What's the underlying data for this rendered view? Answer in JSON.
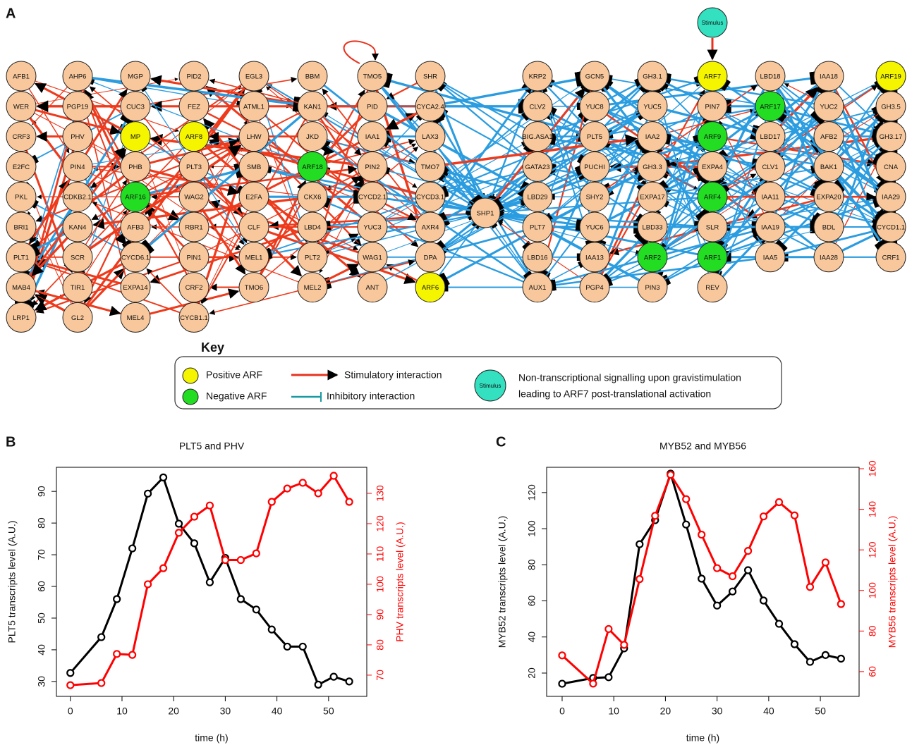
{
  "panel_labels": [
    "A",
    "B",
    "C"
  ],
  "network": {
    "node_color": "#f8c89c",
    "stimulus": {
      "label": "Stimulus",
      "color": "#33e0c0"
    },
    "columns": [
      [
        {
          "label": "AFB1"
        },
        {
          "label": "WER"
        },
        {
          "label": "CRF3"
        },
        {
          "label": "E2FC"
        },
        {
          "label": "PKL"
        },
        {
          "label": "BRI1"
        },
        {
          "label": "PLT1"
        },
        {
          "label": "MAB4"
        },
        {
          "label": "LRP1"
        }
      ],
      [
        {
          "label": "AHP6"
        },
        {
          "label": "PGP19"
        },
        {
          "label": "PHV"
        },
        {
          "label": "PIN4"
        },
        {
          "label": "CDKB2.1"
        },
        {
          "label": "KAN4"
        },
        {
          "label": "SCR"
        },
        {
          "label": "TIR1"
        },
        {
          "label": "GL2"
        }
      ],
      [
        {
          "label": "MGP"
        },
        {
          "label": "CUC3"
        },
        {
          "label": "MP",
          "color": "#f5f500"
        },
        {
          "label": "PHB"
        },
        {
          "label": "ARF16",
          "color": "#22dd22"
        },
        {
          "label": "AFB3"
        },
        {
          "label": "CYCD6.1"
        },
        {
          "label": "EXPA14"
        },
        {
          "label": "MEL4"
        }
      ],
      [
        {
          "label": "PID2"
        },
        {
          "label": "FEZ"
        },
        {
          "label": "ARF8",
          "color": "#f5f500"
        },
        {
          "label": "PLT3"
        },
        {
          "label": "WAG2"
        },
        {
          "label": "RBR1"
        },
        {
          "label": "PIN1"
        },
        {
          "label": "CRF2"
        },
        {
          "label": "CYCB1.1"
        }
      ],
      [
        {
          "label": "EGL3"
        },
        {
          "label": "ATML1"
        },
        {
          "label": "LHW"
        },
        {
          "label": "SMB"
        },
        {
          "label": "E2FA"
        },
        {
          "label": "CLF"
        },
        {
          "label": "MEL1"
        },
        {
          "label": "TMO6"
        }
      ],
      [
        {
          "label": "BBM"
        },
        {
          "label": "KAN1"
        },
        {
          "label": "JKD"
        },
        {
          "label": "ARF18",
          "color": "#22dd22"
        },
        {
          "label": "CKX6"
        },
        {
          "label": "LBD4"
        },
        {
          "label": "PLT2"
        },
        {
          "label": "MEL2"
        }
      ],
      [
        {
          "label": "TMO5"
        },
        {
          "label": "PID"
        },
        {
          "label": "IAA1"
        },
        {
          "label": "PIN2"
        },
        {
          "label": "CYCD2.1"
        },
        {
          "label": "YUC3"
        },
        {
          "label": "WAG1"
        },
        {
          "label": "ANT"
        }
      ],
      [
        {
          "label": "SHR"
        },
        {
          "label": "CYCA2.4"
        },
        {
          "label": "LAX3"
        },
        {
          "label": "TMO7"
        },
        {
          "label": "CYCD3.1"
        },
        {
          "label": "AXR4"
        },
        {
          "label": "DPA"
        },
        {
          "label": "ARF6",
          "color": "#f5f500"
        }
      ],
      [
        {
          "label": "SHP1"
        }
      ],
      [
        {
          "label": "KRP2"
        },
        {
          "label": "CLV2"
        },
        {
          "label": "BIG.ASA1"
        },
        {
          "label": "GATA23"
        },
        {
          "label": "LBD29"
        },
        {
          "label": "PLT7"
        },
        {
          "label": "LBD16"
        },
        {
          "label": "AUX1"
        }
      ],
      [
        {
          "label": "GCN5"
        },
        {
          "label": "YUC8"
        },
        {
          "label": "PLT5"
        },
        {
          "label": "PUCHI"
        },
        {
          "label": "SHY2"
        },
        {
          "label": "YUC6"
        },
        {
          "label": "IAA13"
        },
        {
          "label": "PGP4"
        }
      ],
      [
        {
          "label": "GH3.1"
        },
        {
          "label": "YUC5"
        },
        {
          "label": "IAA2"
        },
        {
          "label": "GH3.3"
        },
        {
          "label": "EXPA17"
        },
        {
          "label": "LBD33"
        },
        {
          "label": "ARF2",
          "color": "#22dd22"
        },
        {
          "label": "PIN3"
        }
      ],
      [
        {
          "label": "ARF7",
          "color": "#f5f500"
        },
        {
          "label": "PIN7"
        },
        {
          "label": "ARF9",
          "color": "#22dd22"
        },
        {
          "label": "EXPA4"
        },
        {
          "label": "ARF4",
          "color": "#22dd22"
        },
        {
          "label": "SLR"
        },
        {
          "label": "ARF1",
          "color": "#22dd22"
        },
        {
          "label": "REV"
        }
      ],
      [
        {
          "label": "LBD18"
        },
        {
          "label": "ARF17",
          "color": "#22dd22"
        },
        {
          "label": "LBD17"
        },
        {
          "label": "CLV1"
        },
        {
          "label": "IAA11"
        },
        {
          "label": "IAA19"
        },
        {
          "label": "IAA5"
        }
      ],
      [
        {
          "label": "IAA18"
        },
        {
          "label": "YUC2"
        },
        {
          "label": "AFB2"
        },
        {
          "label": "BAK1"
        },
        {
          "label": "EXPA20"
        },
        {
          "label": "BDL"
        },
        {
          "label": "IAA28"
        }
      ],
      [
        {
          "label": "ARF19",
          "color": "#f5f500"
        },
        {
          "label": "GH3.5"
        },
        {
          "label": "GH3.17"
        },
        {
          "label": "CNA"
        },
        {
          "label": "IAA29"
        },
        {
          "label": "CYCD1.1"
        },
        {
          "label": "CRF1"
        }
      ]
    ]
  },
  "key": {
    "title": "Key",
    "positive": "Positive ARF",
    "negative": "Negative ARF",
    "stimulatory": "Stimulatory interaction",
    "inhibitory": "Inhibitory interaction",
    "stimulus": "Stimulus",
    "note": [
      "Non-transcriptional signalling upon gravistimulation",
      "leading to ARF7 post-translational activation"
    ]
  },
  "chart_data": [
    {
      "type": "line",
      "title": "PLT5 and PHV",
      "xlabel": "time (h)",
      "ylabel": "PLT5 transcripts level (A.U.)",
      "y2label": "PHV transcripts level (A.U.)",
      "x": [
        0,
        6,
        9,
        12,
        15,
        18,
        21,
        24,
        27,
        30,
        33,
        36,
        39,
        42,
        45,
        48,
        51,
        54
      ],
      "xlim": [
        -2.7,
        57.4
      ],
      "xticks": [
        0,
        10,
        20,
        30,
        40,
        50
      ],
      "ylim": [
        25.3,
        97.6
      ],
      "yticks": [
        30,
        40,
        50,
        60,
        70,
        80,
        90
      ],
      "y2lim": [
        63,
        138.6
      ],
      "y2ticks": [
        70,
        80,
        90,
        100,
        110,
        120,
        130
      ],
      "series": [
        {
          "color": "#000000",
          "values": [
            32.7,
            44,
            56,
            72,
            89.3,
            94.4,
            79.8,
            73.6,
            61.3,
            69,
            56,
            52.7,
            46.4,
            41,
            41,
            29,
            31.5,
            30
          ]
        },
        {
          "color": "#ff0000",
          "axis": "y2",
          "values": [
            66.7,
            67.4,
            77,
            76.7,
            100,
            105.3,
            117,
            122.3,
            126,
            108,
            108,
            110.2,
            127.2,
            131.6,
            133.5,
            130,
            135.8,
            127.2
          ]
        }
      ]
    },
    {
      "type": "line",
      "title": "MYB52 and MYB56",
      "xlabel": "time (h)",
      "ylabel": "MYB52 transcripts level (A.U.)",
      "y2label": "MYB56 transcripts level (A.U.)",
      "x": [
        0,
        6,
        9,
        12,
        15,
        18,
        21,
        24,
        27,
        30,
        33,
        36,
        39,
        42,
        45,
        48,
        51,
        54
      ],
      "xlim": [
        -3,
        57.5
      ],
      "xticks": [
        0,
        10,
        20,
        30,
        40,
        50
      ],
      "ylim": [
        7.1,
        134
      ],
      "yticks": [
        20,
        40,
        60,
        80,
        100,
        120
      ],
      "y2lim": [
        47.8,
        160.7
      ],
      "y2ticks": [
        60,
        80,
        100,
        120,
        140,
        160
      ],
      "series": [
        {
          "color": "#000000",
          "values": [
            14.1,
            17.3,
            17.7,
            33.7,
            91.4,
            104.7,
            130.5,
            102.3,
            72.3,
            57.4,
            65.2,
            77,
            60.2,
            47.3,
            36,
            26.2,
            30,
            28
          ]
        },
        {
          "color": "#ff0000",
          "axis": "y2",
          "values": [
            68,
            54.1,
            81,
            73.2,
            105.6,
            136.8,
            157,
            145,
            127.5,
            111,
            107,
            119.5,
            136.5,
            143.5,
            137,
            101.7,
            113.8,
            93.3
          ]
        }
      ]
    }
  ]
}
